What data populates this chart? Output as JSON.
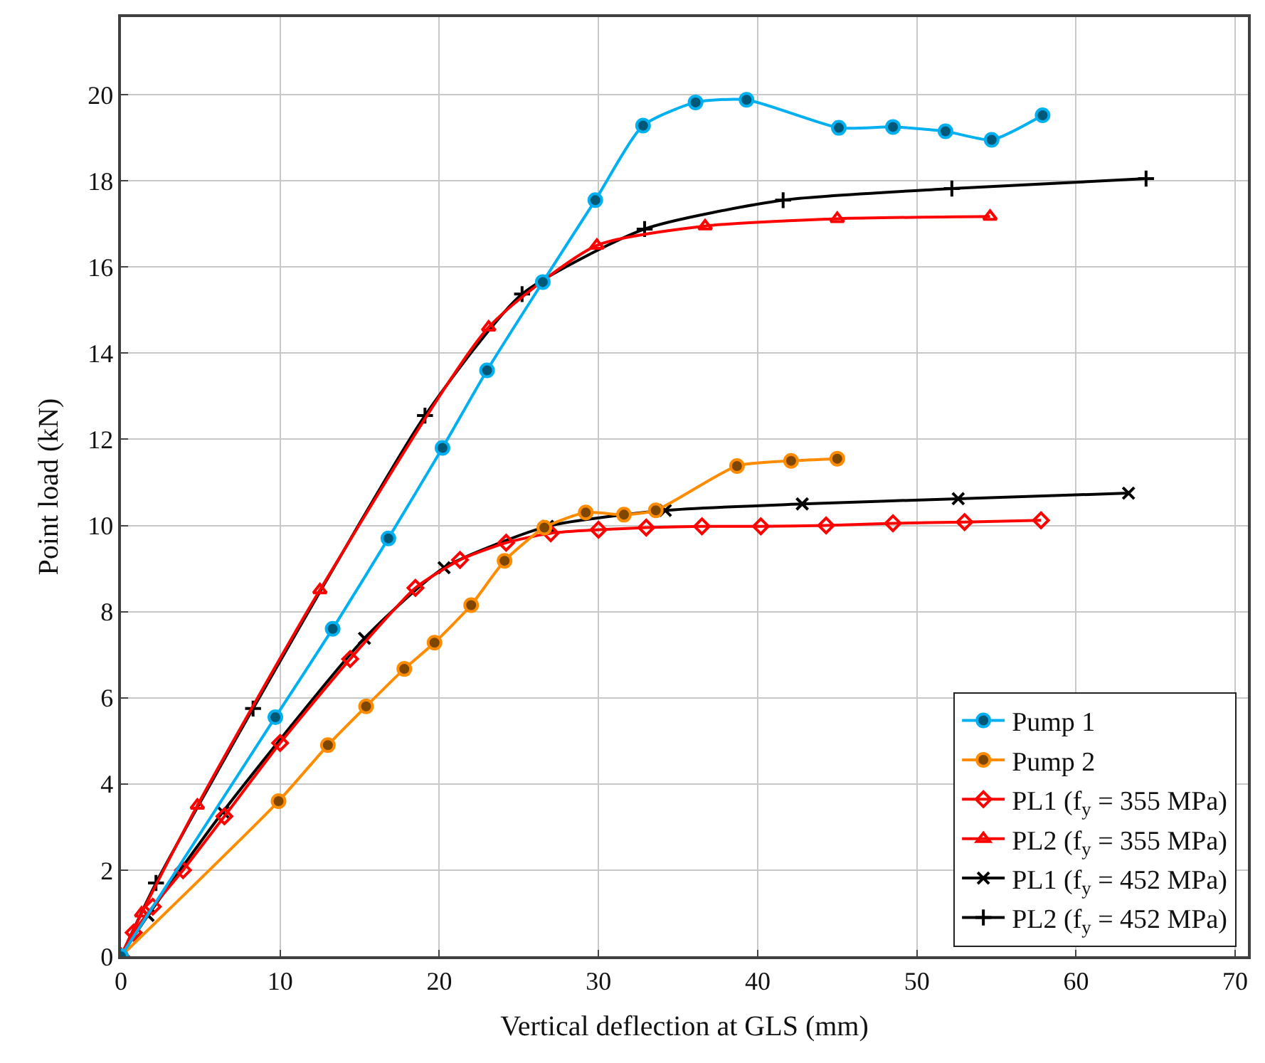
{
  "chart_data": {
    "type": "line",
    "xlabel": "Vertical deflection at GLS (mm)",
    "ylabel": "Point load (kN)",
    "xlim": [
      0,
      70.8
    ],
    "ylim": [
      0,
      21.8
    ],
    "xticks": [
      0,
      10,
      20,
      30,
      40,
      50,
      60,
      70
    ],
    "yticks": [
      0,
      2,
      4,
      6,
      8,
      10,
      12,
      14,
      16,
      18,
      20
    ],
    "grid": true,
    "legend": "bottom right",
    "series": [
      {
        "name": "Pump 1",
        "color": "#00b0f0",
        "marker": "circle",
        "x": [
          0,
          9.7,
          13.3,
          16.8,
          20.2,
          23.0,
          26.5,
          29.8,
          32.8,
          36.1,
          39.3,
          45.1,
          48.5,
          51.8,
          54.7,
          57.9
        ],
        "values": [
          0,
          5.55,
          7.6,
          9.7,
          11.8,
          13.6,
          15.65,
          17.55,
          19.28,
          19.82,
          19.88,
          19.23,
          19.25,
          19.15,
          18.95,
          19.52
        ]
      },
      {
        "name": "Pump 2",
        "color": "#ff8c00",
        "marker": "circle",
        "x": [
          0,
          9.9,
          13.0,
          15.4,
          17.8,
          19.7,
          22.0,
          24.1,
          26.6,
          29.2,
          31.6,
          33.6,
          38.7,
          42.1,
          45.0
        ],
        "values": [
          0,
          3.6,
          4.9,
          5.8,
          6.67,
          7.28,
          8.15,
          9.18,
          9.95,
          10.3,
          10.25,
          10.35,
          11.38,
          11.5,
          11.55
        ]
      },
      {
        "name": "PL1 (f$_{y}$ = 355 MPa)",
        "color": "#ff0000",
        "marker": "diamond",
        "x": [
          0,
          0.8,
          2.0,
          3.9,
          6.5,
          10.0,
          14.4,
          18.5,
          21.3,
          24.2,
          27.0,
          30.0,
          33.0,
          36.5,
          40.2,
          44.3,
          48.5,
          53.0,
          57.8
        ],
        "values": [
          0,
          0.55,
          1.15,
          2.0,
          3.25,
          4.95,
          6.9,
          8.55,
          9.2,
          9.6,
          9.82,
          9.9,
          9.95,
          9.98,
          9.98,
          10.0,
          10.05,
          10.08,
          10.12
        ]
      },
      {
        "name": "PL2 (f$_{y}$ = 355 MPa)",
        "color": "#ff0000",
        "marker": "triangle",
        "x": [
          0,
          1.3,
          4.8,
          12.5,
          23.1,
          29.9,
          36.7,
          45.0,
          54.6
        ],
        "values": [
          0,
          1.0,
          3.5,
          8.5,
          14.6,
          16.5,
          16.95,
          17.12,
          17.17
        ]
      },
      {
        "name": "PL1 (f$_{y}$ = 452 MPa)",
        "color": "#000000",
        "marker": "x",
        "x": [
          0,
          1.7,
          6.4,
          15.3,
          20.3,
          26.8,
          34.2,
          42.8,
          52.6,
          63.3
        ],
        "values": [
          0,
          0.95,
          3.35,
          7.38,
          9.02,
          9.98,
          10.35,
          10.5,
          10.62,
          10.75
        ]
      },
      {
        "name": "PL2 (f$_{y}$ = 452 MPa)",
        "color": "#000000",
        "marker": "cross",
        "x": [
          0,
          2.2,
          8.3,
          19.1,
          25.2,
          32.9,
          41.6,
          52.2,
          64.4
        ],
        "values": [
          0,
          1.7,
          5.75,
          12.55,
          15.37,
          16.88,
          17.55,
          17.82,
          18.05
        ]
      }
    ]
  }
}
